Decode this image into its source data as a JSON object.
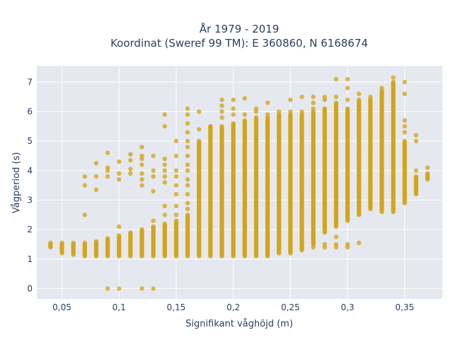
{
  "chart_data": {
    "type": "scatter",
    "title_line1": "År 1979 - 2019",
    "title_line2": "Koordinat (Sweref 99 TM): E 360860, N 6168674",
    "xlabel": "Signifikant våghöjd (m)",
    "ylabel": "Vågperiod (s)",
    "xlim": [
      0.028,
      0.383
    ],
    "ylim": [
      -0.35,
      7.55
    ],
    "x_ticks": [
      0.05,
      0.1,
      0.15,
      0.2,
      0.25,
      0.3,
      0.35
    ],
    "x_tick_labels": [
      "0,05",
      "0,1",
      "0,15",
      "0,2",
      "0,25",
      "0,3",
      "0,35"
    ],
    "y_ticks": [
      0,
      1,
      2,
      3,
      4,
      5,
      6,
      7
    ],
    "y_tick_labels": [
      "0",
      "1",
      "2",
      "3",
      "4",
      "5",
      "6",
      "7"
    ],
    "marker_color": "#d4a418",
    "plot_bg": "#e5e8ef",
    "grid_color": "#ffffff",
    "grid": true,
    "columns": [
      {
        "x": 0.04,
        "y_range": [
          1.4,
          1.55
        ]
      },
      {
        "x": 0.05,
        "y_range": [
          1.2,
          1.55
        ]
      },
      {
        "x": 0.06,
        "y_range": [
          1.15,
          1.55
        ]
      },
      {
        "x": 0.07,
        "y_range": [
          1.1,
          1.55
        ]
      },
      {
        "x": 0.08,
        "y_range": [
          1.1,
          1.6
        ]
      },
      {
        "x": 0.09,
        "y_range": [
          1.1,
          1.7
        ]
      },
      {
        "x": 0.1,
        "y_range": [
          1.1,
          1.8
        ]
      },
      {
        "x": 0.11,
        "y_range": [
          1.1,
          1.9
        ]
      },
      {
        "x": 0.12,
        "y_range": [
          1.1,
          2.0
        ]
      },
      {
        "x": 0.13,
        "y_range": [
          1.1,
          2.1
        ]
      },
      {
        "x": 0.14,
        "y_range": [
          1.1,
          2.2
        ]
      },
      {
        "x": 0.15,
        "y_range": [
          1.1,
          2.3
        ]
      },
      {
        "x": 0.16,
        "y_range": [
          1.1,
          2.5
        ]
      },
      {
        "x": 0.17,
        "y_range": [
          1.1,
          5.0
        ]
      },
      {
        "x": 0.18,
        "y_range": [
          1.1,
          5.5
        ]
      },
      {
        "x": 0.19,
        "y_range": [
          1.1,
          5.5
        ]
      },
      {
        "x": 0.2,
        "y_range": [
          1.1,
          5.6
        ]
      },
      {
        "x": 0.21,
        "y_range": [
          1.1,
          5.7
        ]
      },
      {
        "x": 0.22,
        "y_range": [
          1.1,
          5.8
        ]
      },
      {
        "x": 0.23,
        "y_range": [
          1.1,
          5.8
        ]
      },
      {
        "x": 0.24,
        "y_range": [
          1.2,
          5.9
        ]
      },
      {
        "x": 0.25,
        "y_range": [
          1.2,
          5.9
        ]
      },
      {
        "x": 0.26,
        "y_range": [
          1.3,
          5.9
        ]
      },
      {
        "x": 0.27,
        "y_range": [
          1.5,
          6.0
        ]
      },
      {
        "x": 0.28,
        "y_range": [
          1.9,
          6.1
        ]
      },
      {
        "x": 0.29,
        "y_range": [
          2.1,
          6.3
        ]
      },
      {
        "x": 0.3,
        "y_range": [
          2.3,
          6.1
        ]
      },
      {
        "x": 0.31,
        "y_range": [
          2.5,
          6.4
        ]
      },
      {
        "x": 0.32,
        "y_range": [
          2.7,
          6.4
        ]
      },
      {
        "x": 0.33,
        "y_range": [
          2.6,
          6.7
        ]
      },
      {
        "x": 0.34,
        "y_range": [
          2.6,
          7.0
        ]
      },
      {
        "x": 0.35,
        "y_range": [
          2.9,
          5.0
        ]
      },
      {
        "x": 0.36,
        "y_range": [
          3.2,
          3.8
        ]
      },
      {
        "x": 0.37,
        "y_range": [
          3.7,
          3.9
        ]
      }
    ],
    "points": [
      [
        0.07,
        3.8
      ],
      [
        0.07,
        3.5
      ],
      [
        0.07,
        2.5
      ],
      [
        0.08,
        3.8
      ],
      [
        0.08,
        3.35
      ],
      [
        0.08,
        4.25
      ],
      [
        0.09,
        4.6
      ],
      [
        0.09,
        4.1
      ],
      [
        0.09,
        4.0
      ],
      [
        0.09,
        3.8
      ],
      [
        0.1,
        3.9
      ],
      [
        0.1,
        3.7
      ],
      [
        0.1,
        4.3
      ],
      [
        0.1,
        2.1
      ],
      [
        0.11,
        4.55
      ],
      [
        0.11,
        4.35
      ],
      [
        0.11,
        4.05
      ],
      [
        0.11,
        3.9
      ],
      [
        0.12,
        4.8
      ],
      [
        0.12,
        4.5
      ],
      [
        0.12,
        4.4
      ],
      [
        0.12,
        4.2
      ],
      [
        0.12,
        3.9
      ],
      [
        0.12,
        3.7
      ],
      [
        0.12,
        3.5
      ],
      [
        0.13,
        4.5
      ],
      [
        0.13,
        4.0
      ],
      [
        0.13,
        3.8
      ],
      [
        0.13,
        3.3
      ],
      [
        0.13,
        2.3
      ],
      [
        0.14,
        5.9
      ],
      [
        0.14,
        5.5
      ],
      [
        0.14,
        4.4
      ],
      [
        0.14,
        4.2
      ],
      [
        0.14,
        4.0
      ],
      [
        0.14,
        3.8
      ],
      [
        0.14,
        3.6
      ],
      [
        0.14,
        2.8
      ],
      [
        0.14,
        2.5
      ],
      [
        0.15,
        5.0
      ],
      [
        0.15,
        4.5
      ],
      [
        0.15,
        4.0
      ],
      [
        0.15,
        3.8
      ],
      [
        0.15,
        3.5
      ],
      [
        0.15,
        3.2
      ],
      [
        0.15,
        2.8
      ],
      [
        0.15,
        2.5
      ],
      [
        0.16,
        6.1
      ],
      [
        0.16,
        5.9
      ],
      [
        0.16,
        5.6
      ],
      [
        0.16,
        5.3
      ],
      [
        0.16,
        5.0
      ],
      [
        0.16,
        4.8
      ],
      [
        0.16,
        4.5
      ],
      [
        0.16,
        4.2
      ],
      [
        0.16,
        4.0
      ],
      [
        0.16,
        3.7
      ],
      [
        0.16,
        3.5
      ],
      [
        0.16,
        3.2
      ],
      [
        0.16,
        2.9
      ],
      [
        0.16,
        2.7
      ],
      [
        0.17,
        6.0
      ],
      [
        0.17,
        5.4
      ],
      [
        0.18,
        5.5
      ],
      [
        0.18,
        5.3
      ],
      [
        0.19,
        6.4
      ],
      [
        0.19,
        6.2
      ],
      [
        0.19,
        6.0
      ],
      [
        0.19,
        5.8
      ],
      [
        0.2,
        6.4
      ],
      [
        0.2,
        6.1
      ],
      [
        0.2,
        5.9
      ],
      [
        0.21,
        6.45
      ],
      [
        0.21,
        5.9
      ],
      [
        0.22,
        6.1
      ],
      [
        0.22,
        6.0
      ],
      [
        0.23,
        6.3
      ],
      [
        0.23,
        5.9
      ],
      [
        0.23,
        1.6
      ],
      [
        0.23,
        1.4
      ],
      [
        0.24,
        6.0
      ],
      [
        0.24,
        1.6
      ],
      [
        0.24,
        1.4
      ],
      [
        0.25,
        6.4
      ],
      [
        0.25,
        6.0
      ],
      [
        0.25,
        1.6
      ],
      [
        0.25,
        1.4
      ],
      [
        0.26,
        6.5
      ],
      [
        0.26,
        6.0
      ],
      [
        0.26,
        1.6
      ],
      [
        0.26,
        1.4
      ],
      [
        0.27,
        6.5
      ],
      [
        0.27,
        6.3
      ],
      [
        0.27,
        6.1
      ],
      [
        0.27,
        1.55
      ],
      [
        0.27,
        1.4
      ],
      [
        0.28,
        6.5
      ],
      [
        0.28,
        6.4
      ],
      [
        0.28,
        1.5
      ],
      [
        0.28,
        1.4
      ],
      [
        0.29,
        7.1
      ],
      [
        0.29,
        6.5
      ],
      [
        0.29,
        1.75
      ],
      [
        0.29,
        1.5
      ],
      [
        0.29,
        1.4
      ],
      [
        0.3,
        7.1
      ],
      [
        0.3,
        6.8
      ],
      [
        0.3,
        6.4
      ],
      [
        0.3,
        1.5
      ],
      [
        0.3,
        1.4
      ],
      [
        0.31,
        6.6
      ],
      [
        0.31,
        1.55
      ],
      [
        0.32,
        6.5
      ],
      [
        0.33,
        6.8
      ],
      [
        0.34,
        7.15
      ],
      [
        0.35,
        7.0
      ],
      [
        0.35,
        6.6
      ],
      [
        0.35,
        5.7
      ],
      [
        0.35,
        5.5
      ],
      [
        0.35,
        5.3
      ],
      [
        0.36,
        5.2
      ],
      [
        0.36,
        5.0
      ],
      [
        0.36,
        4.0
      ],
      [
        0.37,
        4.1
      ],
      [
        0.09,
        0.0
      ],
      [
        0.1,
        0.0
      ],
      [
        0.12,
        0.0
      ],
      [
        0.13,
        0.0
      ]
    ]
  }
}
